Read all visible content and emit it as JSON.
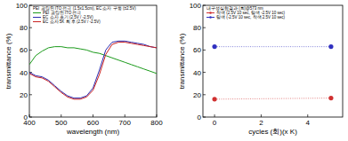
{
  "chart_data": [
    {
      "type": "line",
      "title": "PEI 코팅된 ITO 전극 (1.5x1.5cm), EC 소자 구동 (±2.5V)",
      "x_label": "wavelength (nm)",
      "y_label": "transmittance (%)",
      "x": [
        400,
        420,
        440,
        460,
        480,
        500,
        520,
        540,
        560,
        580,
        600,
        620,
        640,
        660,
        680,
        700,
        720,
        740,
        760,
        780,
        800
      ],
      "xlim": [
        400,
        800
      ],
      "xticks": [
        400,
        500,
        600,
        700,
        800
      ],
      "ylim": [
        0,
        100
      ],
      "yticks": [
        0,
        20,
        40,
        60,
        80,
        100
      ],
      "series": [
        {
          "name": "PEI 코팅된 ITO 전극",
          "color": "#1a9a1a",
          "values": [
            47,
            55,
            59,
            62,
            63,
            63,
            62,
            62,
            61,
            60,
            58,
            57,
            55,
            53,
            51,
            49,
            47,
            45,
            43,
            41,
            39
          ]
        },
        {
          "name": "EC 소자 초기 (2.5V / -2.5V)",
          "color": "#2b2bb0",
          "values": [
            40,
            37,
            36,
            33,
            28,
            23,
            19,
            17,
            17,
            19,
            26,
            42,
            60,
            67,
            68,
            68,
            67,
            66,
            65,
            63,
            62
          ]
        },
        {
          "name": "EC 소자 5K 회 후 (2.5V / -2.5V)",
          "color": "#c82020",
          "values": [
            39,
            36,
            35,
            32,
            27,
            22,
            18,
            16,
            16,
            18,
            24,
            38,
            56,
            65,
            67,
            67,
            66,
            65,
            64,
            63,
            62
          ]
        }
      ]
    },
    {
      "type": "line",
      "marker": "circle",
      "line_style": "dotted",
      "title": "내구성실험결과 (회)@573 nm",
      "x_label": "cycles (회)(x K)",
      "y_label": "transmittance (%)",
      "x": [
        0,
        5
      ],
      "xlim": [
        -0.5,
        5.5
      ],
      "xticks": [
        0,
        2,
        4
      ],
      "ylim": [
        0,
        100
      ],
      "yticks": [
        0,
        20,
        40,
        60,
        80,
        100
      ],
      "series": [
        {
          "name": "착색 (2.5V 10 sec, 탈색 -2.5V 10 sec)",
          "color": "#d03030",
          "values": [
            16,
            17
          ]
        },
        {
          "name": "탈색 (-2.5V 10 sec, 착색 2.5V 10 sec)",
          "color": "#3030c0",
          "values": [
            63,
            63
          ]
        }
      ]
    }
  ]
}
